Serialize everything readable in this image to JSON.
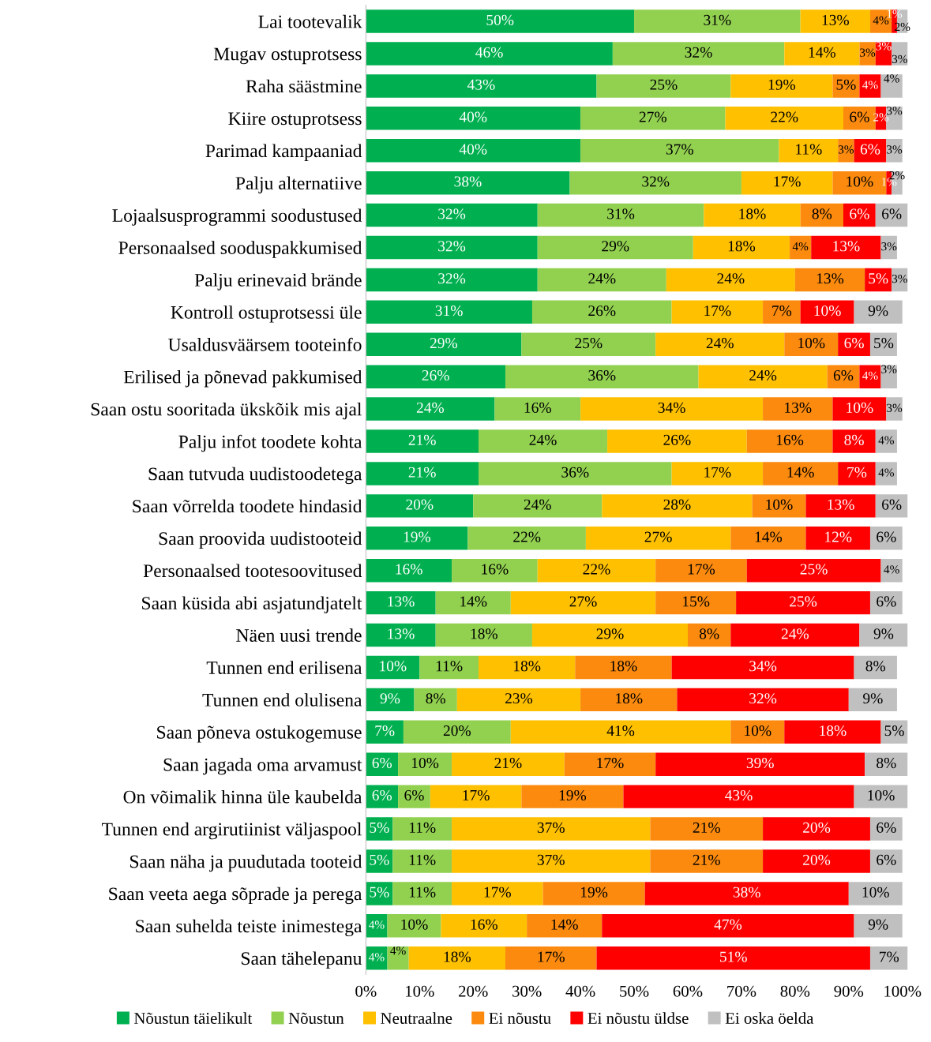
{
  "chart_data": {
    "type": "bar",
    "orientation": "horizontal",
    "stacked": true,
    "legend": "bottom",
    "grid": false,
    "categories": [
      "Lai tootevalik",
      "Mugav ostuprotsess",
      "Raha säästmine",
      "Kiire ostuprotsess",
      "Parimad kampaaniad",
      "Palju alternatiive",
      "Lojaalsusprogrammi soodustused",
      "Personaalsed sooduspakkumised",
      "Palju erinevaid brände",
      "Kontroll ostuprotsessi üle",
      "Usaldusväärsem tooteinfo",
      "Erilised ja põnevad pakkumised",
      "Saan ostu sooritada ükskõik mis ajal",
      "Palju infot toodete kohta",
      "Saan tutvuda uudistoodetega",
      "Saan võrrelda toodete hindasid",
      "Saan proovida uudistooteid",
      "Personaalsed tootesoovitused",
      "Saan küsida abi asjatundjatelt",
      "Näen uusi trende",
      "Tunnen end erilisena",
      "Tunnen end olulisena",
      "Saan põneva ostukogemuse",
      "Saan jagada oma arvamust",
      "On võimalik hinna üle kaubelda",
      "Tunnen end argirutiinist väljaspool",
      "Saan näha ja puudutada tooteid",
      "Saan veeta aega sõprade ja perega",
      "Saan suhelda teiste inimestega",
      "Saan tähelepanu"
    ],
    "xlim": [
      0,
      101
    ],
    "xticks": [
      {
        "value": 0,
        "label": "0%"
      },
      {
        "value": 10,
        "label": "10%"
      },
      {
        "value": 20,
        "label": "20%"
      },
      {
        "value": 30,
        "label": "30%"
      },
      {
        "value": 40,
        "label": "40%"
      },
      {
        "value": 50,
        "label": "50%"
      },
      {
        "value": 60,
        "label": "60%"
      },
      {
        "value": 70,
        "label": "70%"
      },
      {
        "value": 80,
        "label": "80%"
      },
      {
        "value": 90,
        "label": "90%"
      },
      {
        "value": 100,
        "label": "100%"
      }
    ],
    "series": [
      {
        "name": "Nõustun täielikult",
        "color": "#00b050",
        "values": [
          50,
          46,
          43,
          40,
          40,
          38,
          32,
          32,
          32,
          31,
          29,
          26,
          24,
          21,
          21,
          20,
          19,
          16,
          13,
          13,
          10,
          9,
          7,
          6,
          6,
          5,
          5,
          5,
          4,
          4
        ],
        "value_labels": [
          "50%",
          "46%",
          "43%",
          "40%",
          "40%",
          "38%",
          "32%",
          "32%",
          "32%",
          "31%",
          "29%",
          "26%",
          "24%",
          "21%",
          "21%",
          "20%",
          "19%",
          "16%",
          "13%",
          "13%",
          "10%",
          "9%",
          "7%",
          "6%",
          "6%",
          "5%",
          "5%",
          "5%",
          "4%",
          "4%"
        ]
      },
      {
        "name": "Nõustun",
        "color": "#92d050",
        "values": [
          31,
          32,
          25,
          27,
          37,
          32,
          31,
          29,
          24,
          26,
          25,
          36,
          16,
          24,
          36,
          24,
          22,
          16,
          14,
          18,
          11,
          8,
          20,
          10,
          6,
          11,
          11,
          11,
          10,
          4
        ],
        "value_labels": [
          "31%",
          "32%",
          "25%",
          "27%",
          "37%",
          "32%",
          "31%",
          "29%",
          "24%",
          "26%",
          "25%",
          "36%",
          "16%",
          "24%",
          "36%",
          "24%",
          "22%",
          "16%",
          "14%",
          "18%",
          "11%",
          "8%",
          "20%",
          "10%",
          "6%",
          "11%",
          "11%",
          "11%",
          "10%",
          "4%"
        ]
      },
      {
        "name": "Neutraalne",
        "color": "#ffc000",
        "values": [
          13,
          14,
          19,
          22,
          11,
          17,
          18,
          18,
          24,
          17,
          24,
          24,
          34,
          26,
          17,
          28,
          27,
          22,
          27,
          29,
          18,
          23,
          41,
          21,
          17,
          37,
          37,
          17,
          16,
          18
        ],
        "value_labels": [
          "13%",
          "14%",
          "19%",
          "22%",
          "11%",
          "17%",
          "18%",
          "18%",
          "24%",
          "17%",
          "24%",
          "24%",
          "34%",
          "26%",
          "17%",
          "28%",
          "27%",
          "22%",
          "27%",
          "29%",
          "18%",
          "23%",
          "41%",
          "21%",
          "17%",
          "37%",
          "37%",
          "17%",
          "16%",
          "18%"
        ]
      },
      {
        "name": "Ei nõustu",
        "color": "#fb8a0e",
        "values": [
          4,
          3,
          5,
          6,
          3,
          10,
          8,
          4,
          13,
          7,
          10,
          6,
          13,
          16,
          14,
          10,
          14,
          17,
          15,
          8,
          18,
          18,
          10,
          17,
          19,
          21,
          21,
          19,
          14,
          17
        ],
        "value_labels": [
          "4%",
          "3%",
          "5%",
          "6%",
          "3%",
          "10%",
          "8%",
          "4%",
          "13%",
          "7%",
          "10%",
          "6%",
          "13%",
          "16%",
          "14%",
          "10%",
          "14%",
          "17%",
          "15%",
          "8%",
          "18%",
          "18%",
          "10%",
          "17%",
          "19%",
          "21%",
          "21%",
          "19%",
          "14%",
          "17%"
        ]
      },
      {
        "name": "Ei nõustu üldse",
        "color": "#ff0000",
        "values": [
          1,
          3,
          4,
          2,
          6,
          1,
          6,
          13,
          5,
          10,
          6,
          4,
          10,
          8,
          7,
          13,
          12,
          25,
          25,
          24,
          34,
          32,
          18,
          39,
          43,
          20,
          20,
          38,
          47,
          51
        ],
        "value_labels": [
          "1%",
          "3%",
          "4%",
          "2%",
          "6%",
          "1%",
          "6%",
          "13%",
          "5%",
          "10%",
          "6%",
          "4%",
          "10%",
          "8%",
          "7%",
          "13%",
          "12%",
          "25%",
          "25%",
          "24%",
          "34%",
          "32%",
          "18%",
          "39%",
          "43%",
          "20%",
          "20%",
          "38%",
          "47%",
          "51%"
        ]
      },
      {
        "name": "Ei oska öelda",
        "color": "#c0c0c0",
        "values": [
          2,
          3,
          4,
          3,
          3,
          2,
          6,
          3,
          3,
          9,
          5,
          3,
          3,
          4,
          4,
          6,
          6,
          4,
          6,
          9,
          8,
          9,
          5,
          8,
          10,
          6,
          6,
          10,
          9,
          7
        ],
        "value_labels": [
          "2%",
          "3%",
          "4%",
          "3%",
          "3%",
          "2%",
          "6%",
          "3%",
          "3%",
          "9%",
          "5%",
          "3%",
          "3%",
          "4%",
          "4%",
          "6%",
          "6%",
          "4%",
          "6%",
          "9%",
          "8%",
          "9%",
          "5%",
          "8%",
          "10%",
          "6%",
          "6%",
          "10%",
          "9%",
          "7%"
        ]
      }
    ]
  }
}
